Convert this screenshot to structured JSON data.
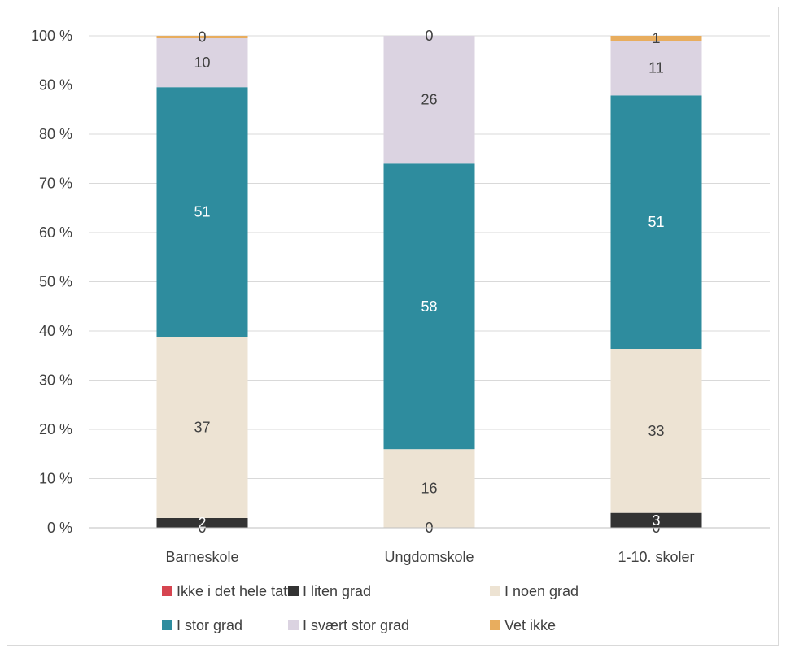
{
  "chart_data": {
    "type": "bar",
    "stacked": true,
    "percent_stacked": true,
    "title": "",
    "xlabel": "",
    "ylabel": "",
    "ylim": [
      0,
      100
    ],
    "y_tick_labels": [
      "0 %",
      "10 %",
      "20 %",
      "30 %",
      "40 %",
      "50 %",
      "60 %",
      "70 %",
      "80 %",
      "90 %",
      "100 %"
    ],
    "grid": true,
    "legend_position": "bottom",
    "categories": [
      "Barneskole",
      "Ungdomskole",
      "1-10. skoler"
    ],
    "series": [
      {
        "name": "Ikke i det hele tatt",
        "color": "#d64550",
        "values": [
          0,
          0,
          0
        ],
        "labels": [
          "0",
          "0",
          "0"
        ]
      },
      {
        "name": "I liten grad",
        "color": "#333333",
        "values": [
          2,
          0,
          3
        ],
        "labels": [
          "2",
          "",
          "3"
        ]
      },
      {
        "name": "I noen grad",
        "color": "#ede3d3",
        "values": [
          37,
          16,
          33
        ],
        "labels": [
          "37",
          "16",
          "33"
        ]
      },
      {
        "name": "I stor grad",
        "color": "#2e8c9e",
        "values": [
          51,
          58,
          51
        ],
        "labels": [
          "51",
          "58",
          "51"
        ]
      },
      {
        "name": "I svært stor grad",
        "color": "#dbd3e1",
        "values": [
          10,
          26,
          11
        ],
        "labels": [
          "10",
          "26",
          "11"
        ]
      },
      {
        "name": "Vet ikke",
        "color": "#e8ad5e",
        "values": [
          0.5,
          0,
          1
        ],
        "labels": [
          "0",
          "0",
          "1"
        ]
      }
    ]
  }
}
